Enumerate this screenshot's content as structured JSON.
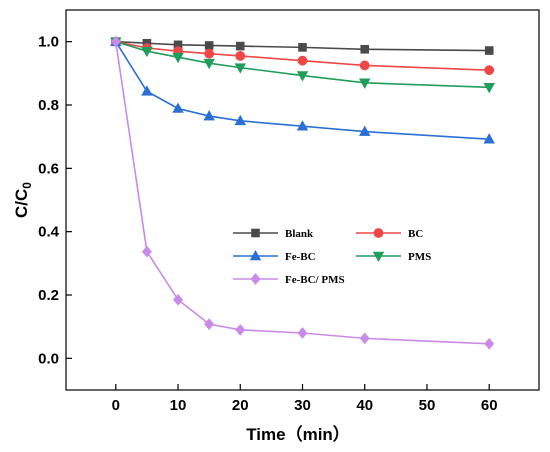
{
  "chart_data": {
    "type": "line",
    "xlabel": "Time（min）",
    "ylabel_main": "C/C",
    "ylabel_sub": "0",
    "xlim": [
      -8,
      68
    ],
    "ylim": [
      -0.1,
      1.1
    ],
    "xticks": [
      0,
      10,
      20,
      30,
      40,
      50,
      60
    ],
    "yticks": [
      0.0,
      0.2,
      0.4,
      0.6,
      0.8,
      1.0
    ],
    "x": [
      0,
      5,
      10,
      15,
      20,
      30,
      40,
      60
    ],
    "legend_position": "center",
    "series": [
      {
        "name": "Blank",
        "color": "#4a4a4a",
        "marker": "square",
        "values": [
          1.0,
          0.995,
          0.99,
          0.988,
          0.986,
          0.982,
          0.976,
          0.972
        ]
      },
      {
        "name": "BC",
        "color": "#f04646",
        "marker": "circle",
        "values": [
          1.0,
          0.98,
          0.97,
          0.962,
          0.955,
          0.94,
          0.925,
          0.91
        ]
      },
      {
        "name": "Fe-BC",
        "color": "#2a6fd6",
        "marker": "triangle-up",
        "values": [
          1.0,
          0.843,
          0.789,
          0.765,
          0.75,
          0.733,
          0.716,
          0.692
        ]
      },
      {
        "name": "PMS",
        "color": "#1f9e5a",
        "marker": "triangle-down",
        "values": [
          1.0,
          0.97,
          0.951,
          0.932,
          0.918,
          0.893,
          0.87,
          0.856
        ]
      },
      {
        "name": "Fe-BC/ PMS",
        "color": "#c98be8",
        "marker": "diamond",
        "values": [
          1.0,
          0.337,
          0.185,
          0.108,
          0.09,
          0.08,
          0.063,
          0.046
        ]
      }
    ]
  }
}
